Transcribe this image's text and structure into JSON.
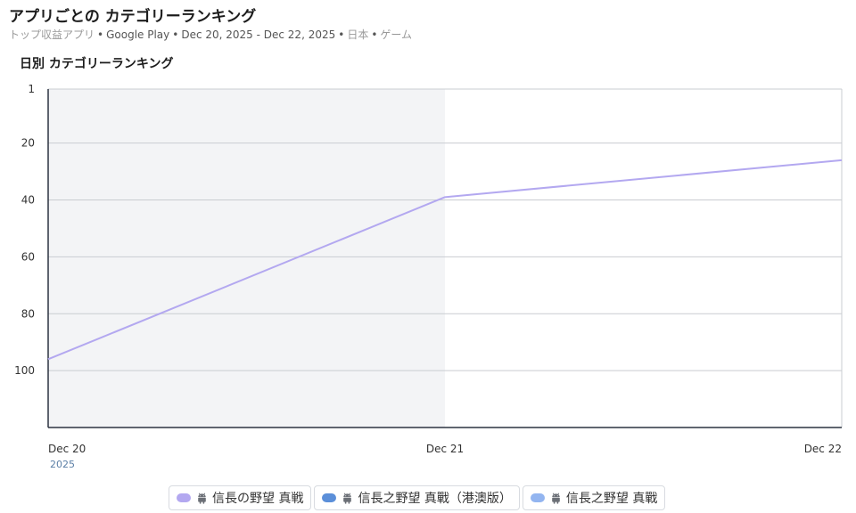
{
  "header": {
    "title": "アプリごとの カテゴリーランキング",
    "subtitle_muted": "トップ収益アプリ",
    "subtitle_store": "Google Play",
    "subtitle_range": "Dec 20, 2025 - Dec 22, 2025",
    "subtitle_country": "日本",
    "subtitle_category": "ゲーム",
    "separator": "•"
  },
  "section_title": "日別 カテゴリーランキング",
  "chart_data": {
    "type": "line",
    "x": [
      "Dec 20",
      "Dec 21",
      "Dec 22"
    ],
    "x_year_label": "2025",
    "y_ticks": [
      1,
      20,
      40,
      60,
      80,
      100
    ],
    "ylim": [
      120,
      1
    ],
    "y_inverted": true,
    "grid": true,
    "highlight_range": [
      "Dec 20",
      "Dec 21"
    ],
    "legend_position": "bottom-center",
    "series": [
      {
        "name": "信長の野望 真戦",
        "color": "#b3a8f0",
        "values": [
          96,
          39,
          26
        ]
      },
      {
        "name": "信長之野望 真戰（港澳版）",
        "color": "#5b8fd9",
        "values": [
          null,
          null,
          null
        ]
      },
      {
        "name": "信長之野望 真戰",
        "color": "#93b5f0",
        "values": [
          null,
          null,
          null
        ]
      }
    ]
  },
  "legend": {
    "icon": "android-icon",
    "items": [
      {
        "label": "信長の野望 真戦",
        "color": "#b3a8f0"
      },
      {
        "label": "信長之野望 真戰（港澳版）",
        "color": "#5b8fd9"
      },
      {
        "label": "信長之野望 真戰",
        "color": "#93b5f0"
      }
    ]
  }
}
